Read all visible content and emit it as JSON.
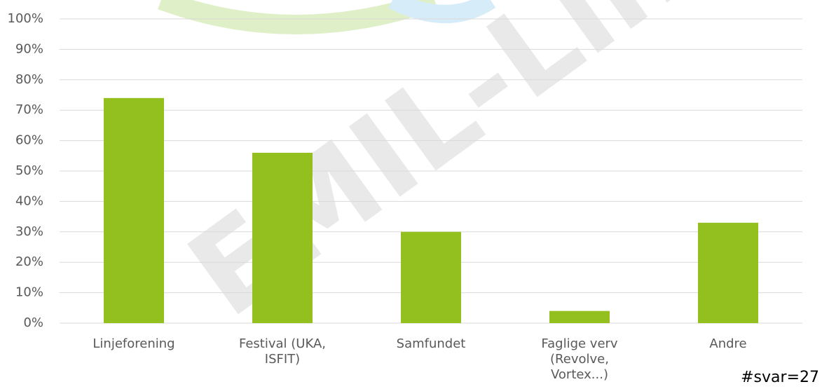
{
  "chart_data": {
    "type": "bar",
    "categories": [
      "Linjeforening",
      "Festival (UKA, ISFIT)",
      "Samfundet",
      "Faglige verv (Revolve, Vortex...)",
      "Andre"
    ],
    "values": [
      74,
      56,
      30,
      4,
      33
    ],
    "color": "#93c01f",
    "ylim": [
      0,
      100
    ],
    "yticks": [
      {
        "value": 0,
        "label": "0%"
      },
      {
        "value": 10,
        "label": "10%"
      },
      {
        "value": 20,
        "label": "20%"
      },
      {
        "value": 30,
        "label": "30%"
      },
      {
        "value": 40,
        "label": "40%"
      },
      {
        "value": 50,
        "label": "50%"
      },
      {
        "value": 60,
        "label": "60%"
      },
      {
        "value": 70,
        "label": "70%"
      },
      {
        "value": 80,
        "label": "80%"
      },
      {
        "value": 90,
        "label": "90%"
      },
      {
        "value": 100,
        "label": "100%"
      }
    ],
    "grid": true,
    "annotation": "#svar=27",
    "watermark": "EMIL-Lin"
  }
}
